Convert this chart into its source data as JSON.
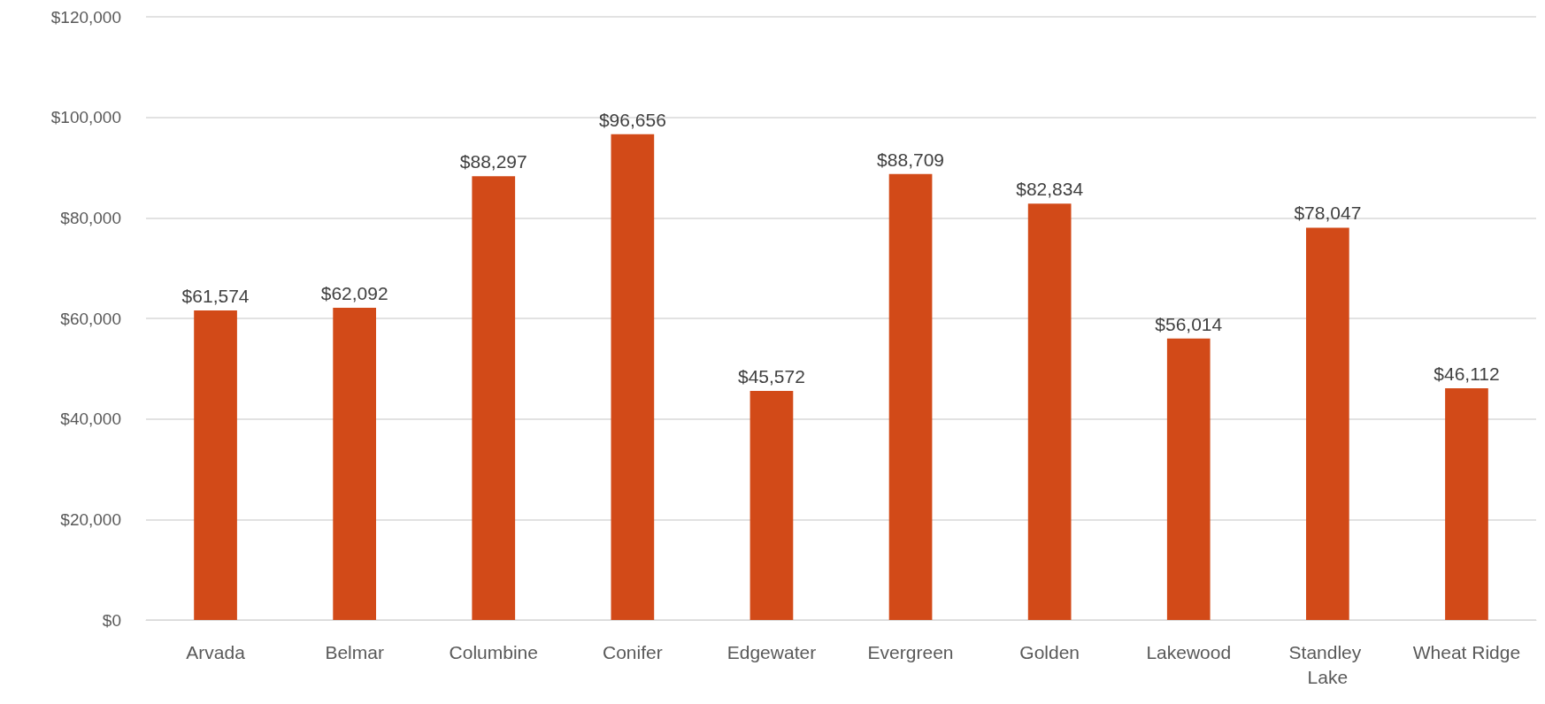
{
  "chart_data": {
    "type": "bar",
    "categories": [
      "Arvada",
      "Belmar",
      "Columbine",
      "Conifer",
      "Edgewater",
      "Evergreen",
      "Golden",
      "Lakewood",
      "Standley Lake",
      "Wheat Ridge"
    ],
    "values": [
      61574,
      62092,
      88297,
      96656,
      45572,
      88709,
      82834,
      56014,
      78047,
      46112
    ],
    "value_labels": [
      "$61,574",
      "$62,092",
      "$88,297",
      "$96,656",
      "$45,572",
      "$88,709",
      "$82,834",
      "$56,014",
      "$78,047",
      "$46,112"
    ],
    "color": "#d24a18",
    "ylim": [
      0,
      120000
    ],
    "yticks": [
      {
        "value": 0,
        "label": "$0"
      },
      {
        "value": 20000,
        "label": "$20,000"
      },
      {
        "value": 40000,
        "label": "$40,000"
      },
      {
        "value": 60000,
        "label": "$60,000"
      },
      {
        "value": 80000,
        "label": "$80,000"
      },
      {
        "value": 100000,
        "label": "$100,000"
      },
      {
        "value": 120000,
        "label": "$120,000"
      }
    ],
    "grid": "y"
  }
}
